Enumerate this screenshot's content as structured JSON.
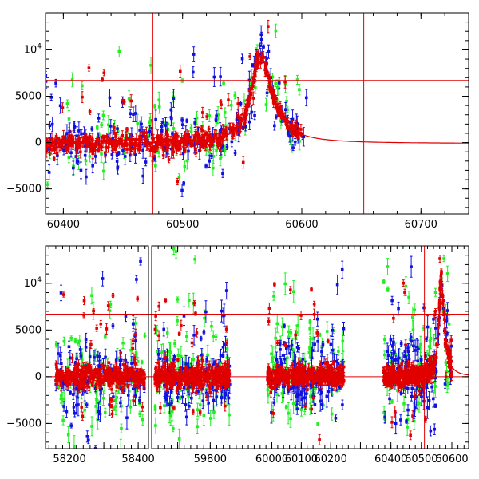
{
  "colors": {
    "red": "#e00000",
    "green": "#22ee22",
    "blue": "#1010e0",
    "axis": "#000000"
  },
  "chart_data": [
    {
      "type": "scatter",
      "title": "",
      "xlabel": "",
      "ylabel": "",
      "xlim": [
        60385,
        60740
      ],
      "ylim": [
        -7700,
        14000
      ],
      "grid": false,
      "x_ticks": [
        60400,
        60500,
        60600,
        60700
      ],
      "x_tick_labels": [
        "60400",
        "60500",
        "60600",
        "60700"
      ],
      "y_ticks": [
        -5000,
        0,
        5000,
        10000
      ],
      "y_tick_labels": [
        "−5000",
        "0",
        "5000",
        "10⁴"
      ],
      "reference_lines": {
        "horizontal": [
          6700
        ],
        "vertical": [
          60475,
          60652
        ]
      },
      "model_curve": {
        "baseline": -100,
        "peak_x": 60565,
        "peak_y": 9400,
        "rise_scale": 9,
        "decay_scale": 12,
        "x_end": 60740
      },
      "series": [
        {
          "color": "red",
          "region": [
            [
              60385,
              60600
            ]
          ],
          "n": 520,
          "scatter": 500,
          "outlier_frac": 0.06
        },
        {
          "color": "green",
          "region": [
            [
              60385,
              60600
            ]
          ],
          "n": 120,
          "scatter": 1800,
          "outlier_frac": 0.2
        },
        {
          "color": "blue",
          "region": [
            [
              60385,
              60605
            ]
          ],
          "n": 220,
          "scatter": 1500,
          "outlier_frac": 0.15
        }
      ]
    },
    {
      "type": "scatter",
      "title": "",
      "xlabel": "",
      "ylabel": "",
      "broken_x_axis": true,
      "segments": [
        {
          "xlim": [
            58130,
            58430
          ],
          "x_ticks": [
            58200,
            58300,
            58400
          ],
          "x_tick_labels": [
            "58200",
            "",
            "58400"
          ]
        },
        {
          "xlim": [
            59620,
            59890
          ],
          "x_ticks": [
            59700,
            59800
          ],
          "x_tick_labels": [
            "",
            "59800"
          ]
        },
        {
          "xlim": [
            59890,
            60270
          ],
          "x_ticks": [
            60000,
            60100,
            60200
          ],
          "x_tick_labels": [
            "60000",
            "60100",
            "60200"
          ]
        },
        {
          "xlim": [
            60270,
            60655
          ],
          "x_ticks": [
            60300,
            60400,
            60500,
            60600
          ],
          "x_tick_labels": [
            "",
            "60400",
            "60500",
            "60600"
          ]
        }
      ],
      "ylim": [
        -7700,
        14000
      ],
      "y_ticks": [
        -5000,
        0,
        5000,
        10000
      ],
      "y_tick_labels": [
        "−5000",
        "0",
        "5000",
        "10⁴"
      ],
      "reference_lines": {
        "horizontal": [
          6700,
          0
        ],
        "vertical": [
          60510
        ]
      },
      "model_curve": {
        "baseline": 0,
        "peak_x": 60565,
        "peak_y": 10500,
        "rise_scale": 9,
        "decay_scale": 12
      },
      "seasons": [
        {
          "range": [
            58160,
            58420
          ]
        },
        {
          "range": [
            59630,
            59860
          ]
        },
        {
          "range": [
            59985,
            60245
          ]
        },
        {
          "range": [
            60375,
            60600
          ]
        }
      ],
      "series": [
        {
          "color": "red",
          "n_per_season": 360,
          "scatter": 550,
          "outlier_frac": 0.06
        },
        {
          "color": "green",
          "n_per_season": 90,
          "scatter": 2600,
          "outlier_frac": 0.2
        },
        {
          "color": "blue",
          "n_per_season": 120,
          "scatter": 2000,
          "outlier_frac": 0.15
        }
      ]
    }
  ]
}
